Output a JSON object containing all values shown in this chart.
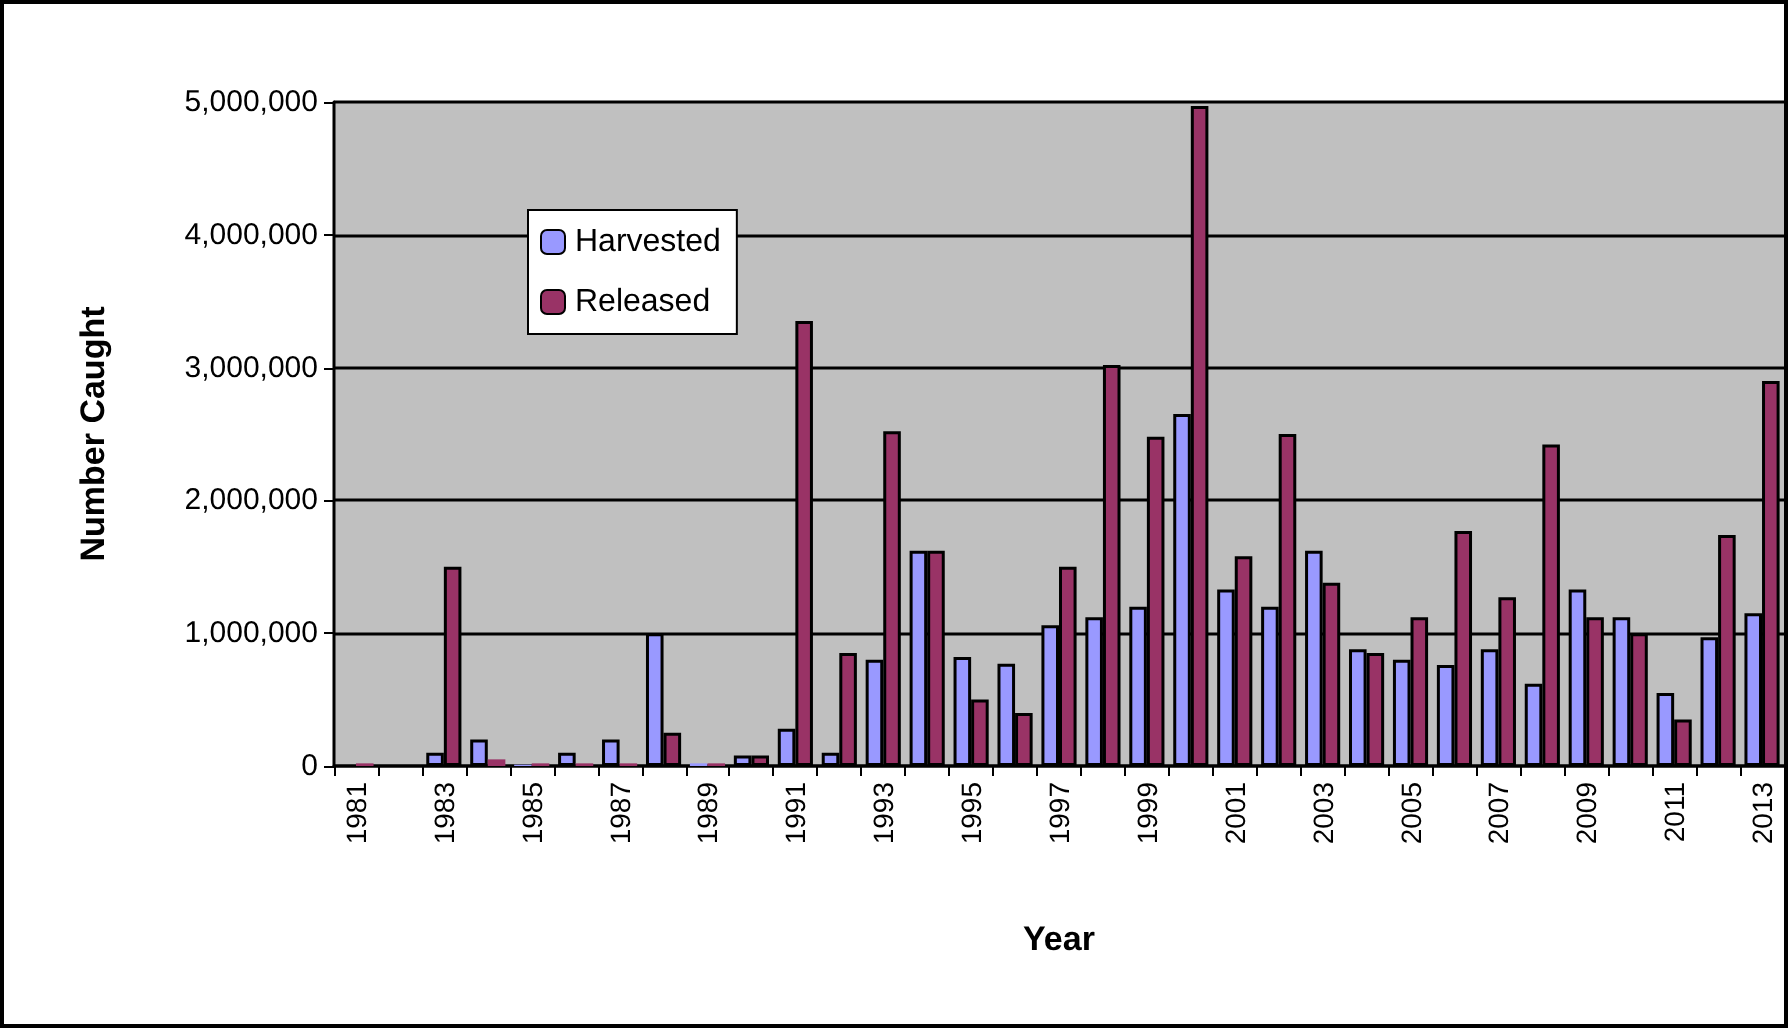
{
  "chart_data": {
    "type": "bar",
    "xlabel": "Year",
    "ylabel": "Number Caught",
    "categories": [
      "1981",
      null,
      "1983",
      null,
      "1985",
      null,
      "1987",
      null,
      "1989",
      null,
      "1991",
      null,
      "1993",
      null,
      "1995",
      null,
      "1997",
      null,
      "1999",
      null,
      "2001",
      null,
      "2003",
      null,
      "2005",
      null,
      "2007",
      null,
      "2009",
      null,
      "2011",
      null,
      "2013"
    ],
    "series": [
      {
        "name": "Harvested",
        "color": "#9999ff",
        "values": [
          0,
          0,
          100000,
          200000,
          10000,
          100000,
          200000,
          1000000,
          20000,
          80000,
          280000,
          100000,
          800000,
          1620000,
          820000,
          770000,
          1060000,
          1120000,
          1200000,
          2650000,
          1330000,
          1200000,
          1620000,
          880000,
          800000,
          760000,
          880000,
          620000,
          1330000,
          1120000,
          550000,
          970000,
          1150000
        ]
      },
      {
        "name": "Released",
        "color": "#993366",
        "values": [
          20000,
          0,
          1500000,
          50000,
          20000,
          20000,
          20000,
          250000,
          20000,
          80000,
          3350000,
          850000,
          2520000,
          1620000,
          500000,
          400000,
          1500000,
          3020000,
          2480000,
          4970000,
          1580000,
          2500000,
          1380000,
          850000,
          1120000,
          1770000,
          1270000,
          2420000,
          1120000,
          1000000,
          350000,
          1740000,
          2900000
        ]
      }
    ],
    "ylim": [
      0,
      5000000
    ],
    "yticks": [
      0,
      {
        "value": 1000000,
        "label": "1,000,000"
      },
      {
        "value": 2000000,
        "label": "2,000,000"
      },
      {
        "value": 3000000,
        "label": "3,000,000"
      },
      {
        "value": 4000000,
        "label": "4,000,000"
      },
      {
        "value": 5000000,
        "label": "5,000,000"
      }
    ],
    "grid": "y",
    "legend": "top left"
  }
}
